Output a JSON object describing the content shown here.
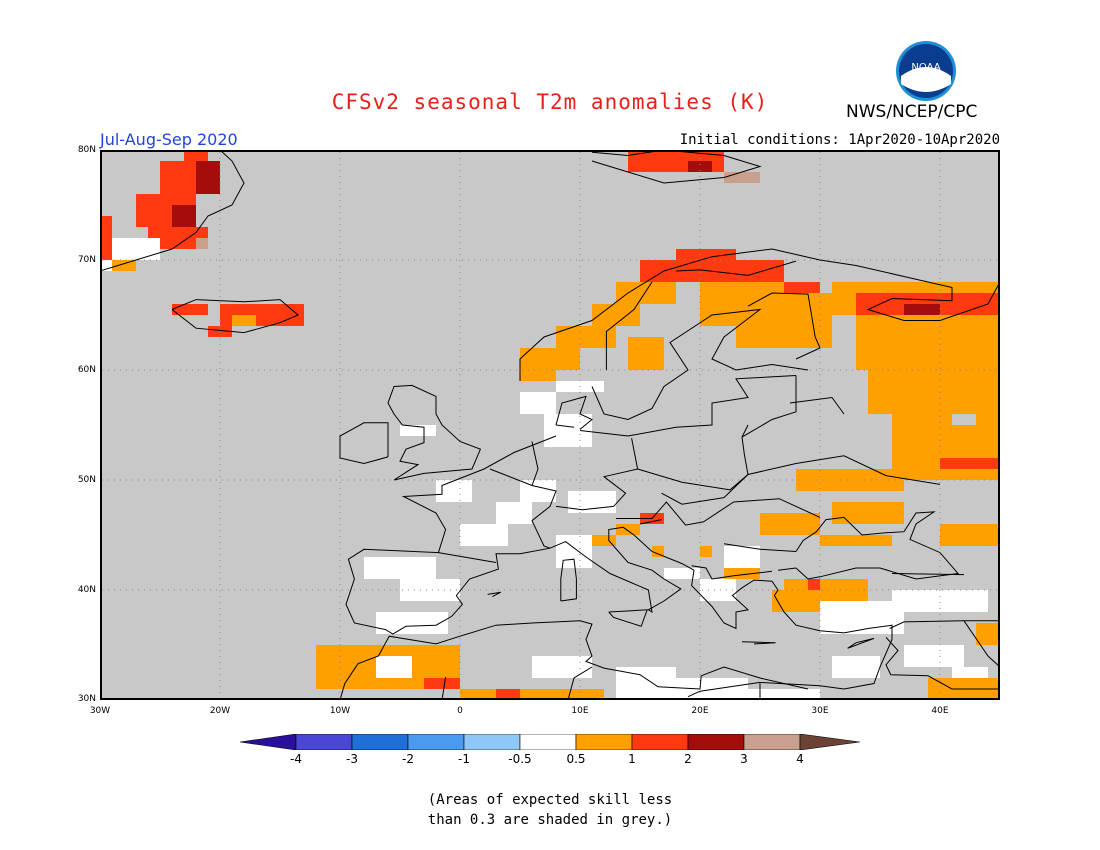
{
  "title": "CFSv2 seasonal T2m anomalies (K)",
  "org": "NWS/NCEP/CPC",
  "logo_text": "NOAA",
  "season": "Jul-Aug-Sep 2020",
  "initial_conditions": "Initial conditions: 1Apr2020-10Apr2020",
  "lat_labels": [
    "80N",
    "70N",
    "60N",
    "50N",
    "40N",
    "30N"
  ],
  "lon_labels": [
    "30W",
    "20W",
    "10W",
    "0",
    "10E",
    "20E",
    "30E",
    "40E"
  ],
  "colorbar": {
    "labels": [
      "-4",
      "-3",
      "-2",
      "-1",
      "-0.5",
      "0.5",
      "1",
      "2",
      "3",
      "4"
    ],
    "colors": [
      "#2a0f9a",
      "#4a46d6",
      "#1e6fd8",
      "#4a9af0",
      "#8ec8f8",
      "#ffffff",
      "#ffa000",
      "#ff3a10",
      "#a50c0c",
      "#c9a08e",
      "#6b4233"
    ]
  },
  "note_line1": "(Areas of expected skill less",
  "note_line2": "than 0.3 are shaded in grey.)",
  "palette": {
    "grey": "#c8c8c8",
    "white": "#ffffff",
    "orange": "#ffa000",
    "red": "#ff3a10",
    "darkred": "#a50c0c",
    "tan": "#c9a08e"
  }
}
